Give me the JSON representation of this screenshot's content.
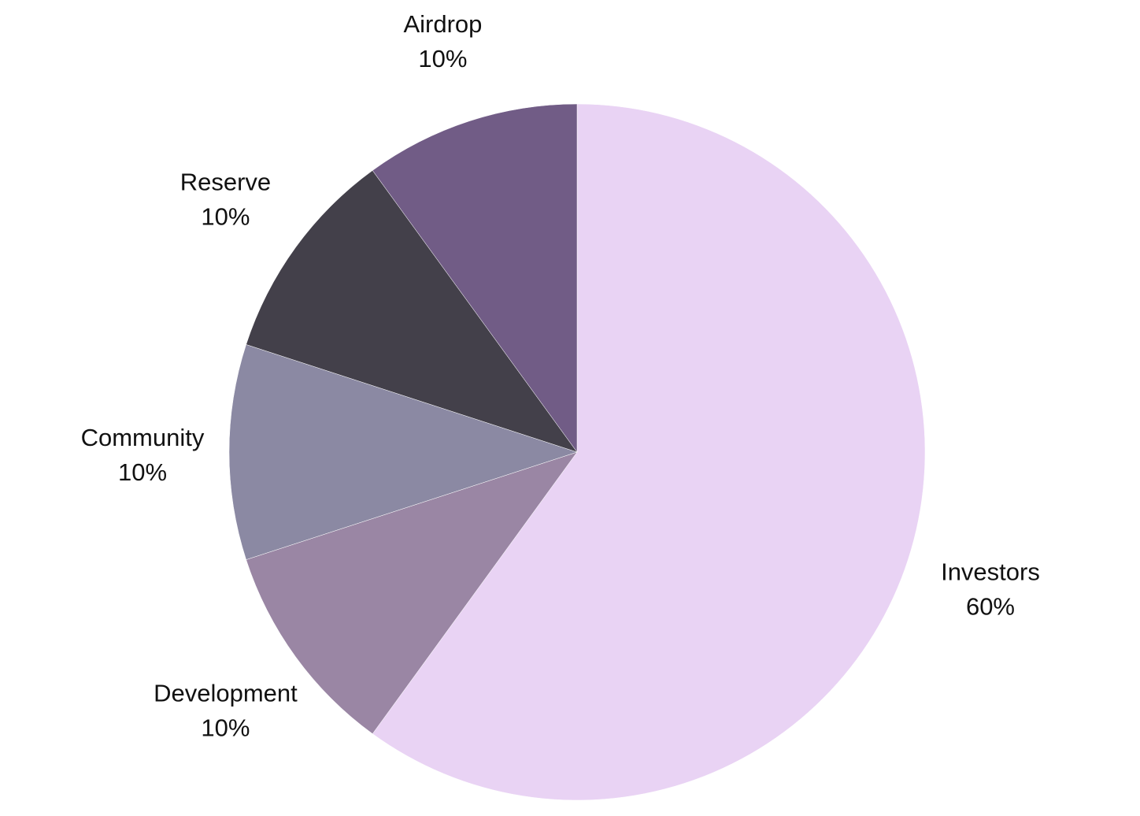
{
  "chart_data": {
    "type": "pie",
    "unit": "%",
    "start_angle": "12 o'clock",
    "direction": "clockwise",
    "slices": [
      {
        "label": "Investors",
        "value": 60,
        "value_label": "60%",
        "color": "#E9D3F4"
      },
      {
        "label": "Development",
        "value": 10,
        "value_label": "10%",
        "color": "#9A86A4"
      },
      {
        "label": "Community",
        "value": 10,
        "value_label": "10%",
        "color": "#8B89A3"
      },
      {
        "label": "Reserve",
        "value": 10,
        "value_label": "10%",
        "color": "#43404A"
      },
      {
        "label": "Airdrop",
        "value": 10,
        "value_label": "10%",
        "color": "#715C86"
      }
    ]
  }
}
